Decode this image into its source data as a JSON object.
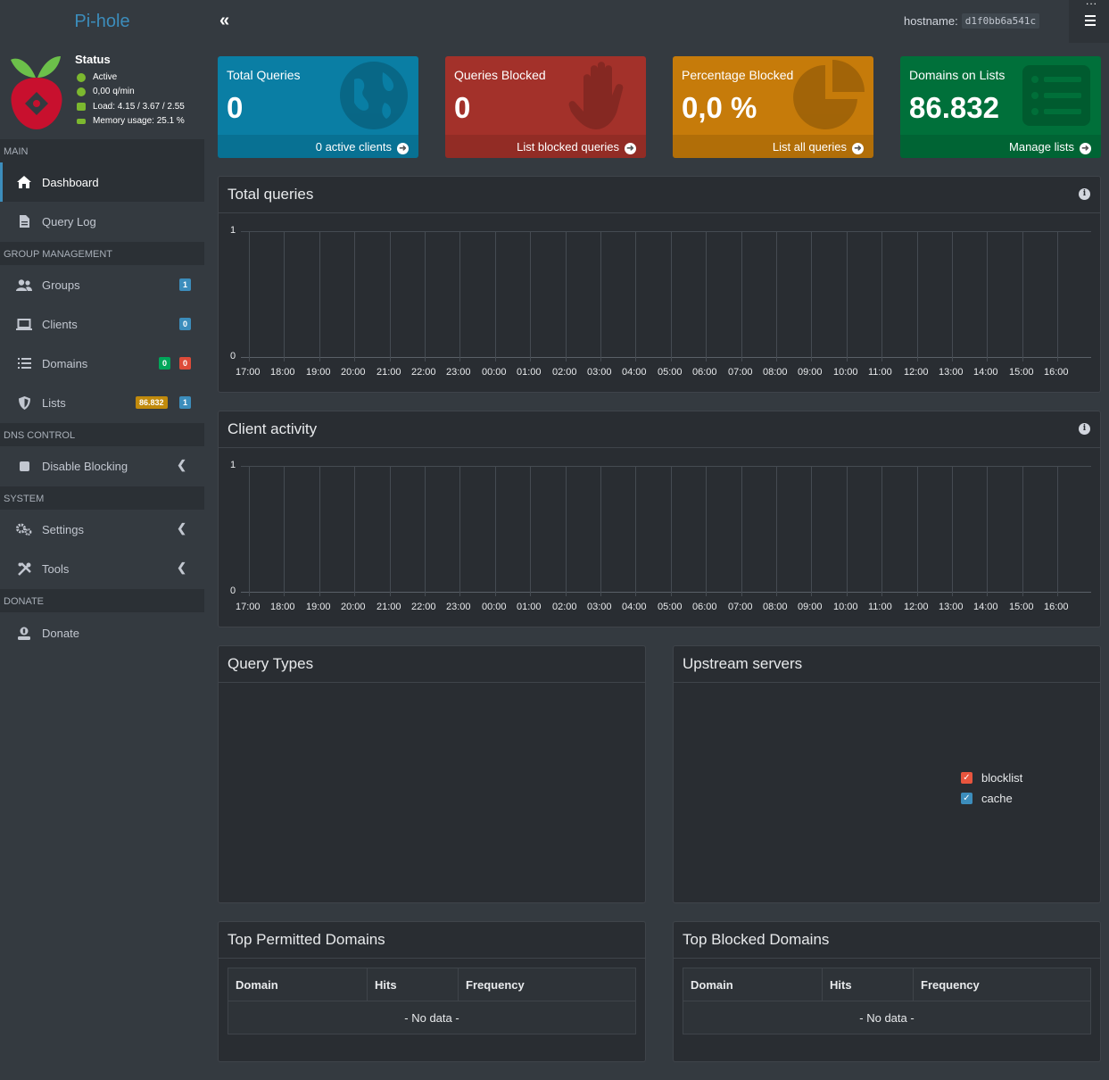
{
  "brand": "Pi-hole",
  "hostname_label": "hostname:",
  "hostname_value": "d1f0bb6a541c",
  "status": {
    "title": "Status",
    "active": "Active",
    "rate": "0,00 q/min",
    "load": "Load: 4.15 / 3.67 / 2.55",
    "memory": "Memory usage: 25.1 %"
  },
  "nav": {
    "main_header": "MAIN",
    "dashboard": "Dashboard",
    "query_log": "Query Log",
    "group_header": "GROUP MANAGEMENT",
    "groups": "Groups",
    "groups_badge": "1",
    "clients": "Clients",
    "clients_badge": "0",
    "domains": "Domains",
    "domains_badge_allow": "0",
    "domains_badge_deny": "0",
    "lists": "Lists",
    "lists_badge_domains": "86.832",
    "lists_badge_count": "1",
    "dns_header": "DNS CONTROL",
    "disable_blocking": "Disable Blocking",
    "system_header": "SYSTEM",
    "settings": "Settings",
    "tools": "Tools",
    "donate_header": "DONATE",
    "donate": "Donate"
  },
  "stats": [
    {
      "label": "Total Queries",
      "value": "0",
      "footer": "0 active clients",
      "color": "#0a7ea4"
    },
    {
      "label": "Queries Blocked",
      "value": "0",
      "footer": "List blocked queries",
      "color": "#a3312a"
    },
    {
      "label": "Percentage Blocked",
      "value": "0,0 %",
      "footer": "List all queries",
      "color": "#c67b0a"
    },
    {
      "label": "Domains on Lists",
      "value": "86.832",
      "footer": "Manage lists",
      "color": "#00703a"
    }
  ],
  "charts": {
    "total_queries_title": "Total queries",
    "client_activity_title": "Client activity",
    "y_top": "1",
    "y_bottom": "0",
    "times": [
      "17:00",
      "18:00",
      "19:00",
      "20:00",
      "21:00",
      "22:00",
      "23:00",
      "00:00",
      "01:00",
      "02:00",
      "03:00",
      "04:00",
      "05:00",
      "06:00",
      "07:00",
      "08:00",
      "09:00",
      "10:00",
      "11:00",
      "12:00",
      "13:00",
      "14:00",
      "15:00",
      "16:00"
    ]
  },
  "query_types_title": "Query Types",
  "upstream": {
    "title": "Upstream servers",
    "legend": [
      {
        "label": "blocklist",
        "color": "#e8553e"
      },
      {
        "label": "cache",
        "color": "#3c8dbc"
      }
    ]
  },
  "top_permitted": {
    "title": "Top Permitted Domains",
    "cols": [
      "Domain",
      "Hits",
      "Frequency"
    ],
    "empty": "- No data -"
  },
  "top_blocked": {
    "title": "Top Blocked Domains",
    "cols": [
      "Domain",
      "Hits",
      "Frequency"
    ],
    "empty": "- No data -"
  }
}
